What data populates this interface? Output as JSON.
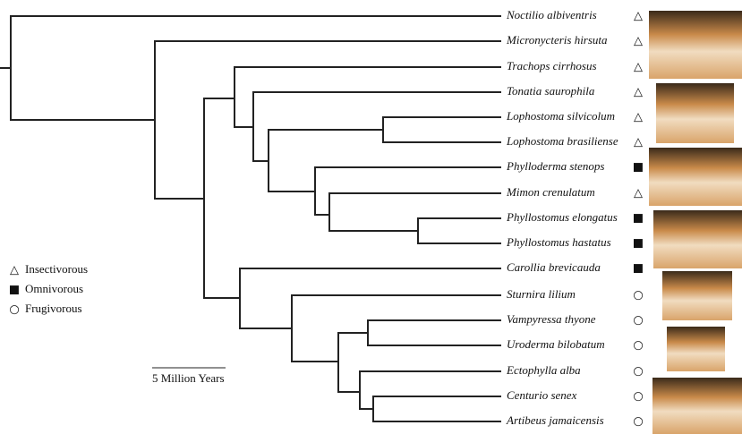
{
  "taxa": [
    {
      "name": "Noctilio albiventris",
      "symbol": "△"
    },
    {
      "name": "Micronycteris hirsuta",
      "symbol": "△"
    },
    {
      "name": "Trachops cirrhosus",
      "symbol": "△"
    },
    {
      "name": "Tonatia saurophila",
      "symbol": "△"
    },
    {
      "name": "Lophostoma silvicolum",
      "symbol": "△"
    },
    {
      "name": "Lophostoma brasiliense",
      "symbol": "△"
    },
    {
      "name": "Phylloderma stenops",
      "symbol": "■"
    },
    {
      "name": "Mimon crenulatum",
      "symbol": "△"
    },
    {
      "name": "Phyllostomus elongatus",
      "symbol": "■"
    },
    {
      "name": "Phyllostomus hastatus",
      "symbol": "■"
    },
    {
      "name": "Carollia brevicauda",
      "symbol": "■"
    },
    {
      "name": "Sturnira lilium",
      "symbol": "○"
    },
    {
      "name": "Vampyressa thyone",
      "symbol": "○"
    },
    {
      "name": "Uroderma bilobatum",
      "symbol": "○"
    },
    {
      "name": "Ectophylla alba",
      "symbol": "○"
    },
    {
      "name": "Centurio senex",
      "symbol": "○"
    },
    {
      "name": "Artibeus jamaicensis",
      "symbol": "○"
    }
  ],
  "legend": [
    {
      "symbol": "△",
      "label": "Insectivorous"
    },
    {
      "symbol": "■",
      "label": "Omnivorous"
    },
    {
      "symbol": "○",
      "label": "Frugivorous"
    }
  ],
  "scale_bar": {
    "label": "5 Million Years"
  }
}
